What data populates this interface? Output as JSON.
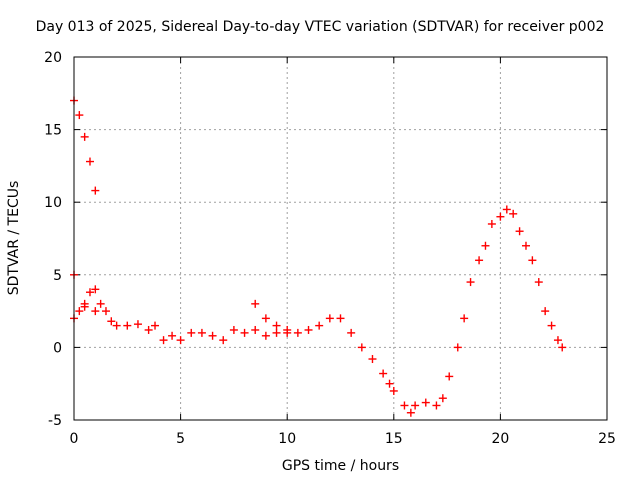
{
  "chart_data": {
    "type": "scatter",
    "title": "Day 013 of 2025, Sidereal Day-to-day VTEC variation (SDTVAR) for receiver p002",
    "xlabel": "GPS time / hours",
    "ylabel": "SDTVAR / TECUs",
    "xlim": [
      0,
      25
    ],
    "ylim": [
      -5,
      20
    ],
    "xticks": [
      "0",
      "5",
      "10",
      "15",
      "20",
      "25"
    ],
    "yticks": [
      "-5",
      "0",
      "5",
      "10",
      "15",
      "20"
    ],
    "grid": true,
    "marker": "+",
    "series_color": "#ff0000",
    "series": [
      {
        "name": "SDTVAR",
        "x": [
          0.0,
          0.25,
          0.5,
          0.75,
          1.0,
          0.0,
          0.25,
          0.5,
          0.75,
          1.0,
          1.25,
          1.5,
          1.75,
          2.0,
          2.5,
          3.0,
          3.5,
          3.8,
          4.2,
          4.6,
          5.0,
          5.5,
          6.0,
          6.5,
          7.0,
          7.5,
          8.0,
          8.5,
          9.0,
          9.5,
          10.0,
          10.5,
          11.0,
          11.5,
          12.0,
          12.5,
          13.0,
          13.5,
          14.0,
          14.5,
          14.8,
          15.0,
          15.5,
          15.8,
          16.0,
          16.5,
          17.0,
          17.3,
          17.6,
          18.0,
          18.3,
          18.6,
          19.0,
          19.3,
          19.6,
          20.0,
          20.3,
          20.6,
          20.9,
          21.2,
          21.5,
          21.8,
          22.1,
          22.4,
          22.7,
          22.9,
          0.0,
          0.5,
          1.0,
          8.5,
          9.0,
          9.5,
          10.0
        ],
        "y": [
          17.0,
          16.0,
          14.5,
          12.8,
          10.8,
          5.0,
          2.5,
          3.0,
          3.8,
          4.0,
          3.0,
          2.5,
          1.8,
          1.5,
          1.5,
          1.6,
          1.2,
          1.5,
          0.5,
          0.8,
          0.5,
          1.0,
          1.0,
          0.8,
          0.5,
          1.2,
          1.0,
          1.2,
          0.8,
          1.0,
          1.2,
          1.0,
          1.2,
          1.5,
          2.0,
          2.0,
          1.0,
          0.0,
          -0.8,
          -1.8,
          -2.5,
          -3.0,
          -4.0,
          -4.5,
          -4.0,
          -3.8,
          -4.0,
          -3.5,
          -2.0,
          0.0,
          2.0,
          4.5,
          6.0,
          7.0,
          8.5,
          9.0,
          9.5,
          9.2,
          8.0,
          7.0,
          6.0,
          4.5,
          2.5,
          1.5,
          0.5,
          0.0,
          2.0,
          2.8,
          2.5,
          3.0,
          2.0,
          1.5,
          1.0
        ]
      }
    ]
  }
}
